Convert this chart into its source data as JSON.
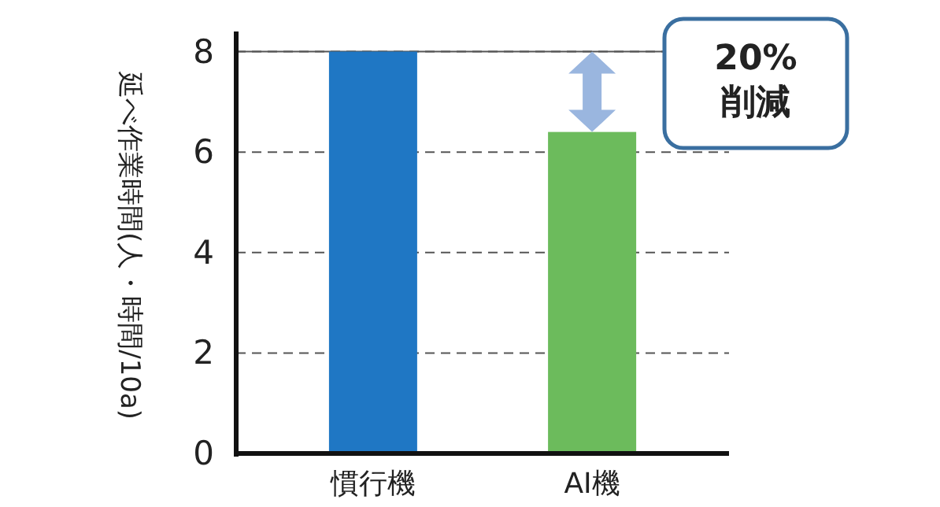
{
  "chart_data": {
    "type": "bar",
    "ylabel": "延べ作業時間(人・時間/10a)",
    "categories": [
      "慣行機",
      "AI機"
    ],
    "values": [
      8,
      6.4
    ],
    "colors": [
      "#1f77c4",
      "#6cbb5c"
    ],
    "ylim": [
      0,
      8.4
    ],
    "yticks": [
      0,
      2,
      4,
      6,
      8
    ],
    "grid": "y",
    "ref_lines": [
      {
        "axis": "y",
        "value": 8,
        "color": "#555555",
        "line_style": "solid"
      }
    ],
    "annotations": [
      "20%\n削減"
    ]
  }
}
